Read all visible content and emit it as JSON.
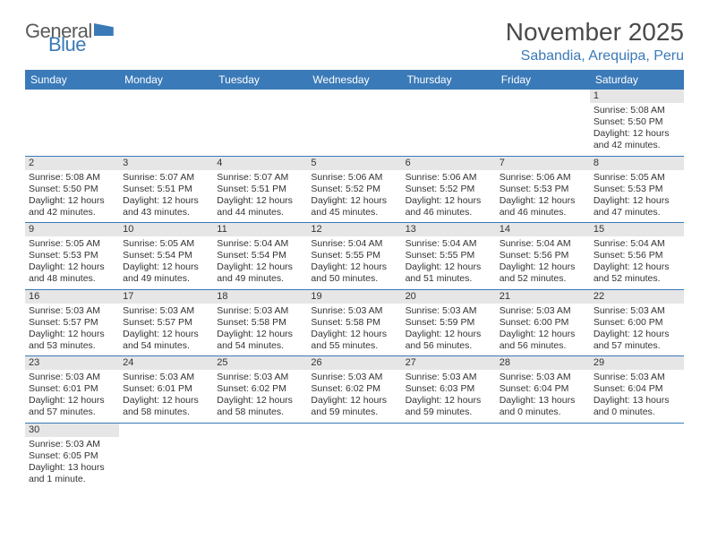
{
  "brand": {
    "name_a": "General",
    "name_b": "Blue"
  },
  "title": "November 2025",
  "location": "Sabandia, Arequipa, Peru",
  "colors": {
    "header_bg": "#3a7ab8",
    "header_fg": "#ffffff",
    "daynum_bg": "#e6e6e6",
    "border": "#3a7ab8",
    "text": "#333333",
    "title_text": "#4a4a4a"
  },
  "weekdays": [
    "Sunday",
    "Monday",
    "Tuesday",
    "Wednesday",
    "Thursday",
    "Friday",
    "Saturday"
  ],
  "weeks": [
    [
      null,
      null,
      null,
      null,
      null,
      null,
      {
        "n": "1",
        "sr": "Sunrise: 5:08 AM",
        "ss": "Sunset: 5:50 PM",
        "dl1": "Daylight: 12 hours",
        "dl2": "and 42 minutes."
      }
    ],
    [
      {
        "n": "2",
        "sr": "Sunrise: 5:08 AM",
        "ss": "Sunset: 5:50 PM",
        "dl1": "Daylight: 12 hours",
        "dl2": "and 42 minutes."
      },
      {
        "n": "3",
        "sr": "Sunrise: 5:07 AM",
        "ss": "Sunset: 5:51 PM",
        "dl1": "Daylight: 12 hours",
        "dl2": "and 43 minutes."
      },
      {
        "n": "4",
        "sr": "Sunrise: 5:07 AM",
        "ss": "Sunset: 5:51 PM",
        "dl1": "Daylight: 12 hours",
        "dl2": "and 44 minutes."
      },
      {
        "n": "5",
        "sr": "Sunrise: 5:06 AM",
        "ss": "Sunset: 5:52 PM",
        "dl1": "Daylight: 12 hours",
        "dl2": "and 45 minutes."
      },
      {
        "n": "6",
        "sr": "Sunrise: 5:06 AM",
        "ss": "Sunset: 5:52 PM",
        "dl1": "Daylight: 12 hours",
        "dl2": "and 46 minutes."
      },
      {
        "n": "7",
        "sr": "Sunrise: 5:06 AM",
        "ss": "Sunset: 5:53 PM",
        "dl1": "Daylight: 12 hours",
        "dl2": "and 46 minutes."
      },
      {
        "n": "8",
        "sr": "Sunrise: 5:05 AM",
        "ss": "Sunset: 5:53 PM",
        "dl1": "Daylight: 12 hours",
        "dl2": "and 47 minutes."
      }
    ],
    [
      {
        "n": "9",
        "sr": "Sunrise: 5:05 AM",
        "ss": "Sunset: 5:53 PM",
        "dl1": "Daylight: 12 hours",
        "dl2": "and 48 minutes."
      },
      {
        "n": "10",
        "sr": "Sunrise: 5:05 AM",
        "ss": "Sunset: 5:54 PM",
        "dl1": "Daylight: 12 hours",
        "dl2": "and 49 minutes."
      },
      {
        "n": "11",
        "sr": "Sunrise: 5:04 AM",
        "ss": "Sunset: 5:54 PM",
        "dl1": "Daylight: 12 hours",
        "dl2": "and 49 minutes."
      },
      {
        "n": "12",
        "sr": "Sunrise: 5:04 AM",
        "ss": "Sunset: 5:55 PM",
        "dl1": "Daylight: 12 hours",
        "dl2": "and 50 minutes."
      },
      {
        "n": "13",
        "sr": "Sunrise: 5:04 AM",
        "ss": "Sunset: 5:55 PM",
        "dl1": "Daylight: 12 hours",
        "dl2": "and 51 minutes."
      },
      {
        "n": "14",
        "sr": "Sunrise: 5:04 AM",
        "ss": "Sunset: 5:56 PM",
        "dl1": "Daylight: 12 hours",
        "dl2": "and 52 minutes."
      },
      {
        "n": "15",
        "sr": "Sunrise: 5:04 AM",
        "ss": "Sunset: 5:56 PM",
        "dl1": "Daylight: 12 hours",
        "dl2": "and 52 minutes."
      }
    ],
    [
      {
        "n": "16",
        "sr": "Sunrise: 5:03 AM",
        "ss": "Sunset: 5:57 PM",
        "dl1": "Daylight: 12 hours",
        "dl2": "and 53 minutes."
      },
      {
        "n": "17",
        "sr": "Sunrise: 5:03 AM",
        "ss": "Sunset: 5:57 PM",
        "dl1": "Daylight: 12 hours",
        "dl2": "and 54 minutes."
      },
      {
        "n": "18",
        "sr": "Sunrise: 5:03 AM",
        "ss": "Sunset: 5:58 PM",
        "dl1": "Daylight: 12 hours",
        "dl2": "and 54 minutes."
      },
      {
        "n": "19",
        "sr": "Sunrise: 5:03 AM",
        "ss": "Sunset: 5:58 PM",
        "dl1": "Daylight: 12 hours",
        "dl2": "and 55 minutes."
      },
      {
        "n": "20",
        "sr": "Sunrise: 5:03 AM",
        "ss": "Sunset: 5:59 PM",
        "dl1": "Daylight: 12 hours",
        "dl2": "and 56 minutes."
      },
      {
        "n": "21",
        "sr": "Sunrise: 5:03 AM",
        "ss": "Sunset: 6:00 PM",
        "dl1": "Daylight: 12 hours",
        "dl2": "and 56 minutes."
      },
      {
        "n": "22",
        "sr": "Sunrise: 5:03 AM",
        "ss": "Sunset: 6:00 PM",
        "dl1": "Daylight: 12 hours",
        "dl2": "and 57 minutes."
      }
    ],
    [
      {
        "n": "23",
        "sr": "Sunrise: 5:03 AM",
        "ss": "Sunset: 6:01 PM",
        "dl1": "Daylight: 12 hours",
        "dl2": "and 57 minutes."
      },
      {
        "n": "24",
        "sr": "Sunrise: 5:03 AM",
        "ss": "Sunset: 6:01 PM",
        "dl1": "Daylight: 12 hours",
        "dl2": "and 58 minutes."
      },
      {
        "n": "25",
        "sr": "Sunrise: 5:03 AM",
        "ss": "Sunset: 6:02 PM",
        "dl1": "Daylight: 12 hours",
        "dl2": "and 58 minutes."
      },
      {
        "n": "26",
        "sr": "Sunrise: 5:03 AM",
        "ss": "Sunset: 6:02 PM",
        "dl1": "Daylight: 12 hours",
        "dl2": "and 59 minutes."
      },
      {
        "n": "27",
        "sr": "Sunrise: 5:03 AM",
        "ss": "Sunset: 6:03 PM",
        "dl1": "Daylight: 12 hours",
        "dl2": "and 59 minutes."
      },
      {
        "n": "28",
        "sr": "Sunrise: 5:03 AM",
        "ss": "Sunset: 6:04 PM",
        "dl1": "Daylight: 13 hours",
        "dl2": "and 0 minutes."
      },
      {
        "n": "29",
        "sr": "Sunrise: 5:03 AM",
        "ss": "Sunset: 6:04 PM",
        "dl1": "Daylight: 13 hours",
        "dl2": "and 0 minutes."
      }
    ],
    [
      {
        "n": "30",
        "sr": "Sunrise: 5:03 AM",
        "ss": "Sunset: 6:05 PM",
        "dl1": "Daylight: 13 hours",
        "dl2": "and 1 minute."
      },
      null,
      null,
      null,
      null,
      null,
      null
    ]
  ]
}
